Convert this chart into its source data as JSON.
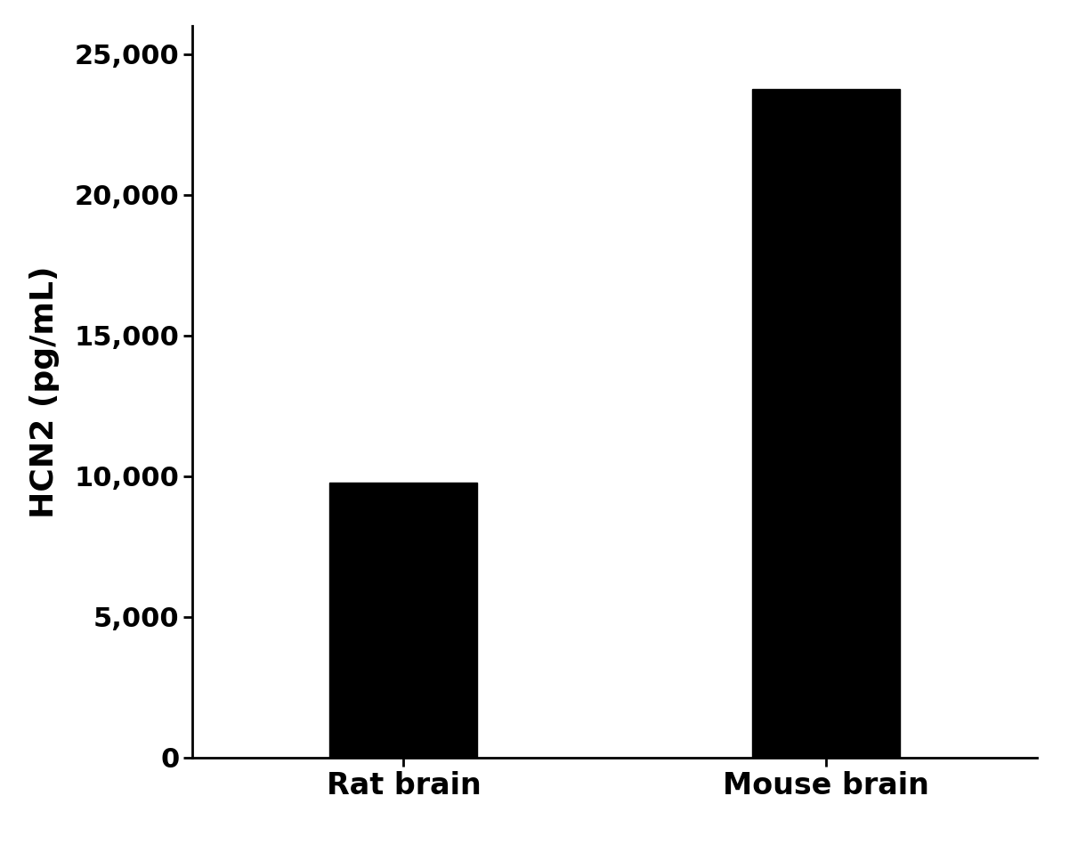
{
  "categories": [
    "Rat brain",
    "Mouse brain"
  ],
  "values": [
    9765.2,
    23767.3
  ],
  "bar_color": "#000000",
  "ylabel": "HCN2 (pg/mL)",
  "ylim": [
    0,
    26000
  ],
  "yticks": [
    0,
    5000,
    10000,
    15000,
    20000,
    25000
  ],
  "bar_width": 0.35,
  "background_color": "#ffffff",
  "tick_label_fontsize": 22,
  "ylabel_fontsize": 26,
  "xlabel_fontsize": 24,
  "spine_linewidth": 2.0,
  "xlim": [
    -0.5,
    1.5
  ]
}
